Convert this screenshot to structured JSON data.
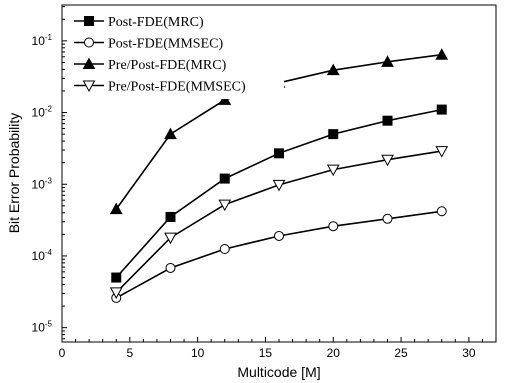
{
  "chart_data": {
    "type": "line",
    "xlabel": "Multicode [M]",
    "ylabel": "Bit Error Probability",
    "xlim": [
      0,
      32
    ],
    "ylim_log10": [
      -5.2,
      -0.5
    ],
    "y_scale": "log",
    "x_ticks": [
      "0",
      "5",
      "10",
      "15",
      "20",
      "25",
      "30"
    ],
    "x_tick_values": [
      0,
      5,
      10,
      15,
      20,
      25,
      30
    ],
    "y_ticks": [
      {
        "base": "10",
        "exp": "-5",
        "value": 1e-05
      },
      {
        "base": "10",
        "exp": "-4",
        "value": 0.0001
      },
      {
        "base": "10",
        "exp": "-3",
        "value": 0.001
      },
      {
        "base": "10",
        "exp": "-2",
        "value": 0.01
      },
      {
        "base": "10",
        "exp": "-1",
        "value": 0.1
      }
    ],
    "legend_position": "top-left",
    "grid": false,
    "x": [
      4,
      8,
      12,
      16,
      20,
      24,
      28
    ],
    "series": [
      {
        "name": "Post-FDE(MRC)",
        "marker": "filled-square",
        "values": [
          5e-05,
          0.00035,
          0.0012,
          0.0027,
          0.005,
          0.0077,
          0.011
        ]
      },
      {
        "name": "Post-FDE(MMSEC)",
        "marker": "open-circle",
        "values": [
          2.6e-05,
          6.8e-05,
          0.000125,
          0.00019,
          0.00026,
          0.00033,
          0.00042
        ]
      },
      {
        "name": "Pre/Post-FDE(MRC)",
        "marker": "filled-triangle-up",
        "values": [
          0.00045,
          0.005,
          0.015,
          0.026,
          0.039,
          0.051,
          0.064
        ]
      },
      {
        "name": "Pre/Post-FDE(MMSEC)",
        "marker": "open-triangle-down",
        "values": [
          3.1e-05,
          0.00018,
          0.00052,
          0.00098,
          0.0016,
          0.0022,
          0.0029
        ]
      }
    ]
  }
}
